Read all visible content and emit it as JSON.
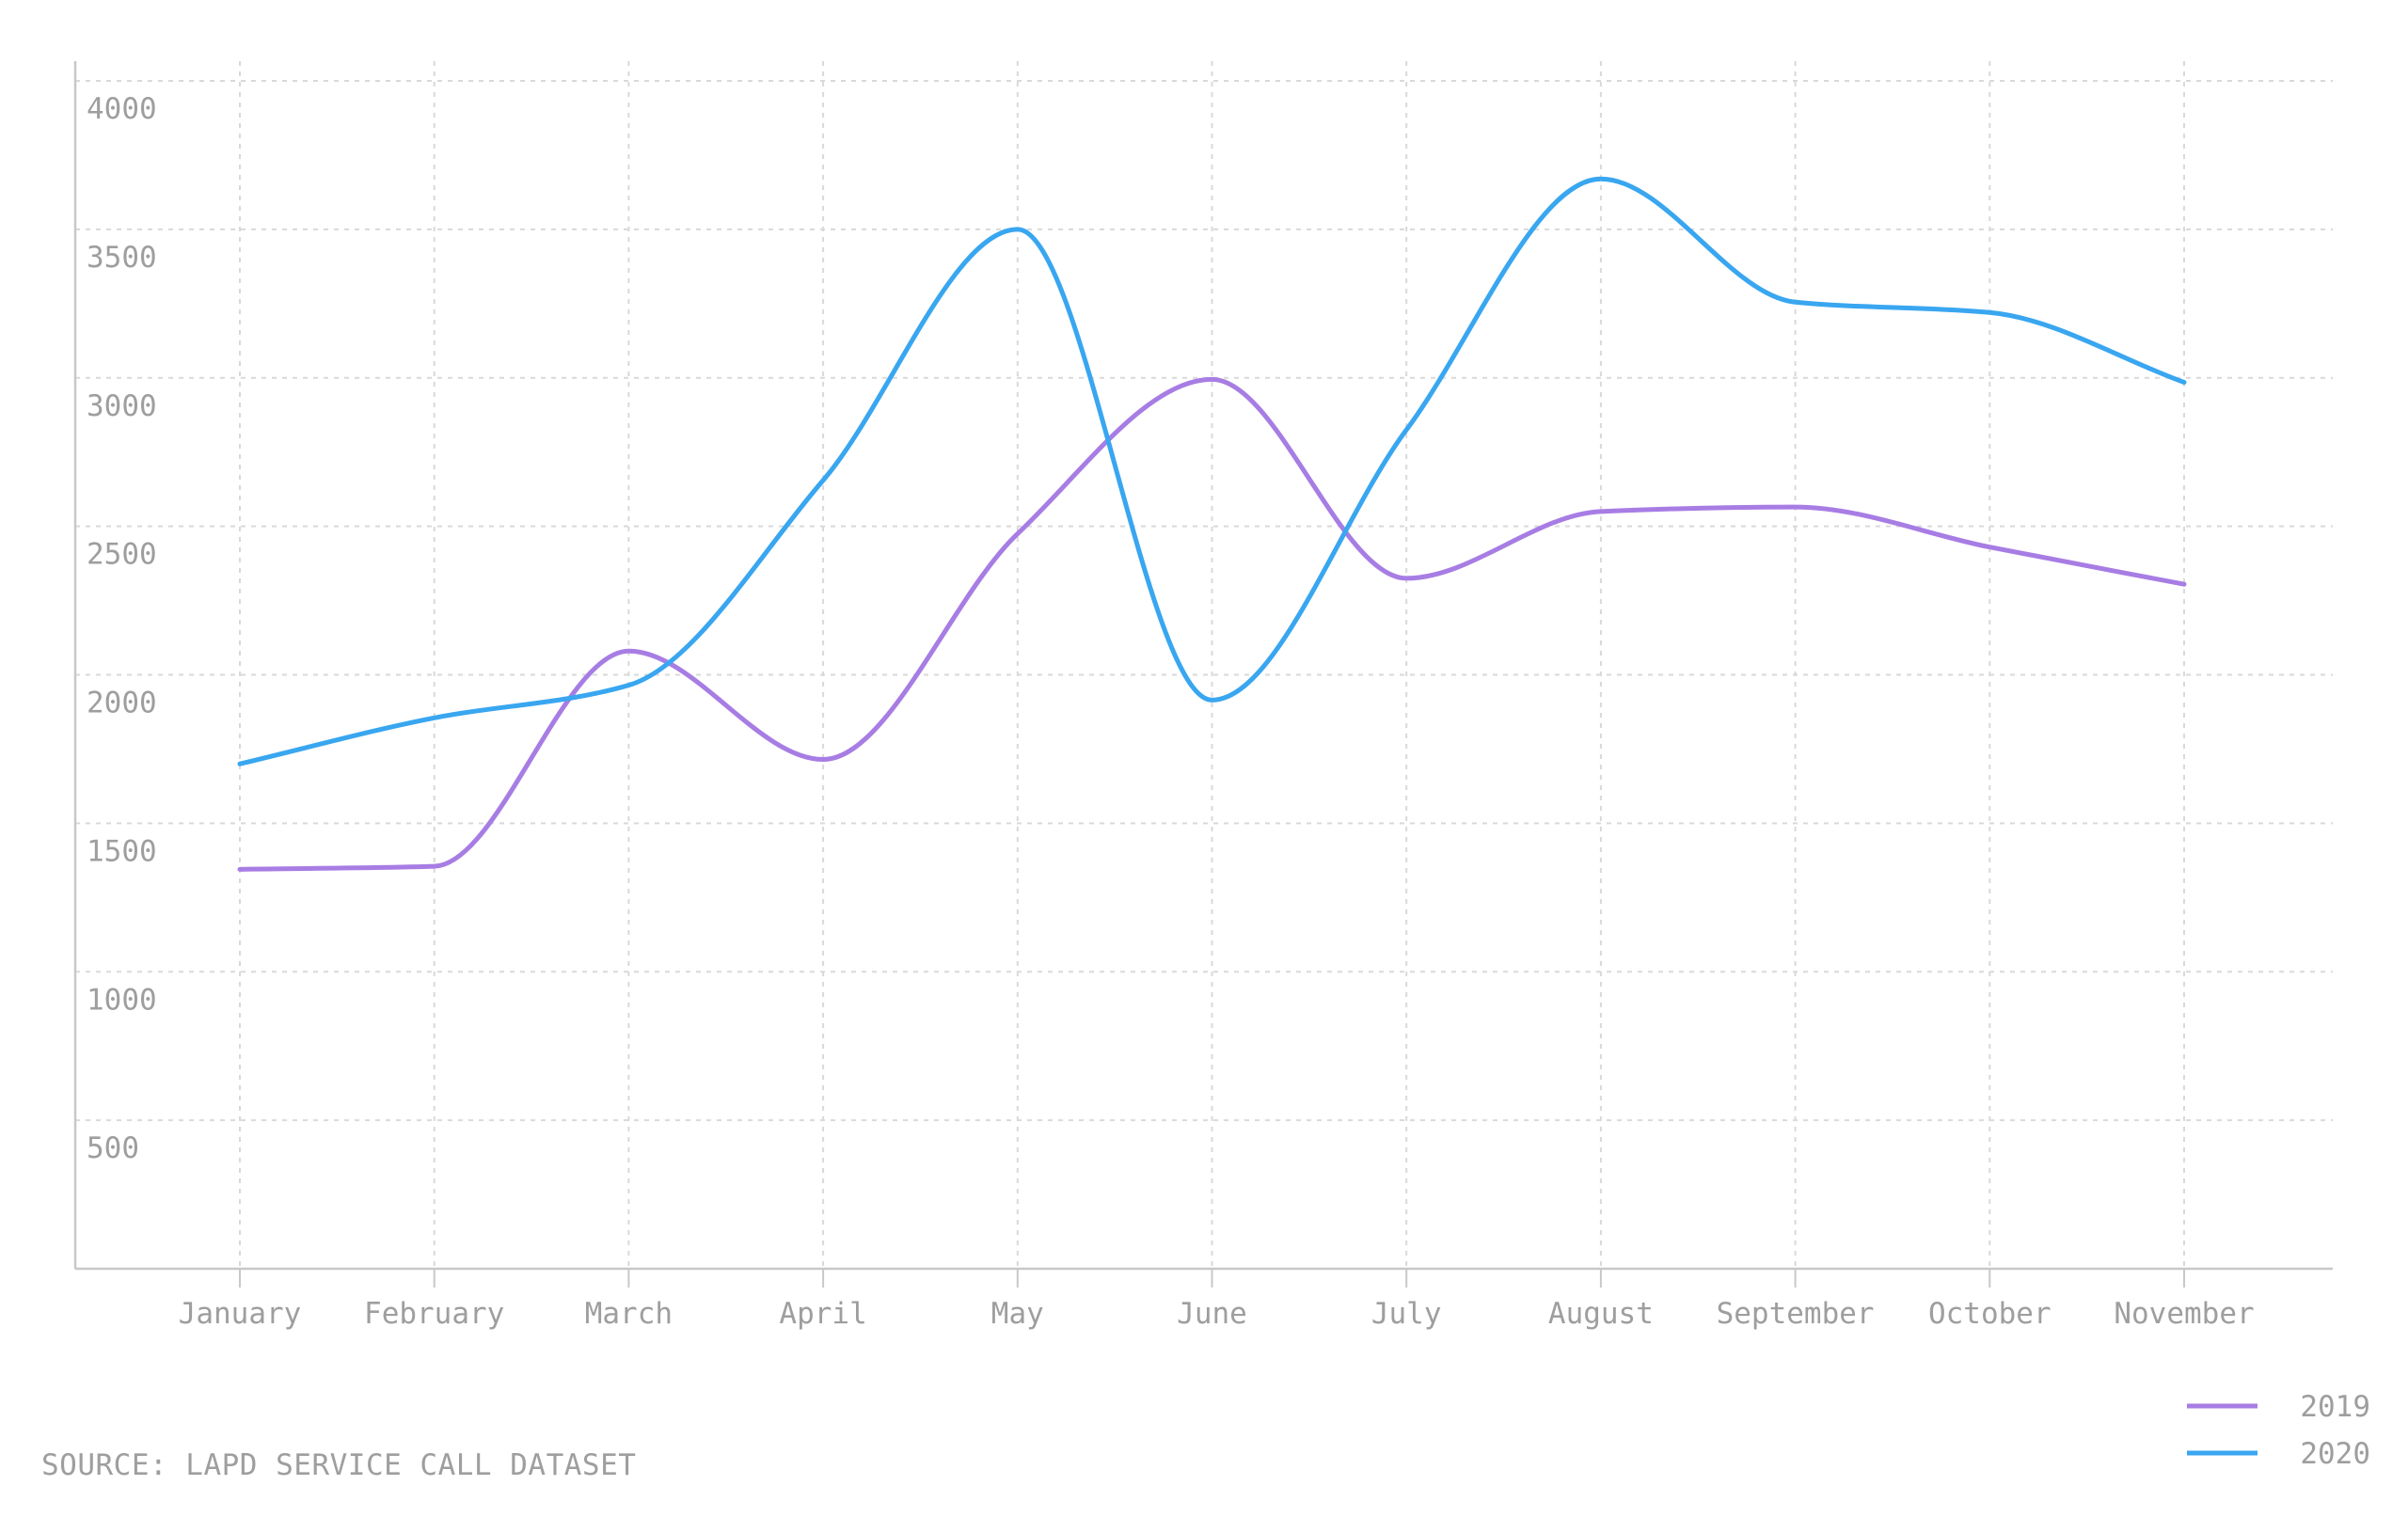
{
  "chart_data": {
    "type": "line",
    "title": "",
    "xlabel": "",
    "ylabel": "",
    "categories": [
      "January",
      "February",
      "March",
      "April",
      "May",
      "June",
      "July",
      "August",
      "September",
      "October",
      "November"
    ],
    "series": [
      {
        "name": "2019",
        "color": "#a77de4",
        "values": [
          1345,
          1355,
          2080,
          1715,
          2475,
          2995,
          2325,
          2550,
          2565,
          2430,
          2305
        ]
      },
      {
        "name": "2020",
        "color": "#39a6f0",
        "values": [
          1700,
          1855,
          1965,
          2655,
          3500,
          1915,
          2825,
          3670,
          3255,
          3220,
          2985
        ]
      }
    ],
    "yticks": [
      500,
      1000,
      1500,
      2000,
      2500,
      3000,
      3500,
      4000
    ],
    "ylim": [
      0,
      4000
    ],
    "grid": true,
    "legend_position": "bottom-right",
    "curve": "smooth"
  },
  "source_text": "SOURCE: LAPD SERVICE CALL DATASET"
}
